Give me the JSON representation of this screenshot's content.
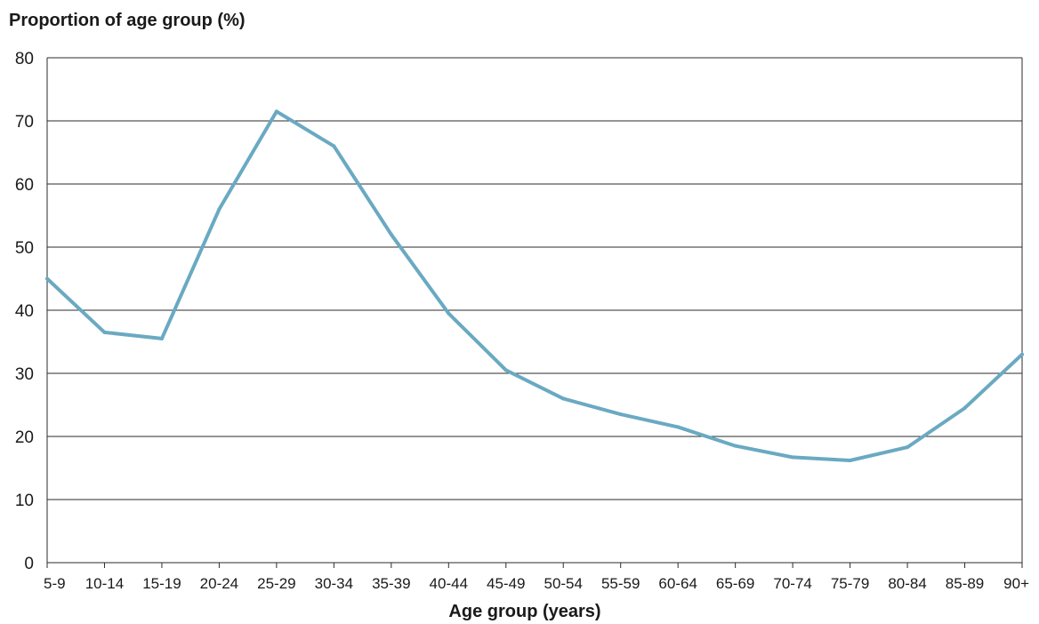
{
  "chart_data": {
    "type": "line",
    "ylabel": "Proportion of age group (%)",
    "xlabel": "Age group (years)",
    "categories": [
      "5-9",
      "10-14",
      "15-19",
      "20-24",
      "25-29",
      "30-34",
      "35-39",
      "40-44",
      "45-49",
      "50-54",
      "55-59",
      "60-64",
      "65-69",
      "70-74",
      "75-79",
      "80-84",
      "85-89",
      "90+"
    ],
    "yticks": [
      0,
      10,
      20,
      30,
      40,
      50,
      60,
      70,
      80
    ],
    "ylim": [
      0,
      80
    ],
    "grid": true,
    "series": [
      {
        "values": [
          45,
          36.5,
          35.5,
          56,
          71.5,
          66,
          52,
          39.5,
          30.5,
          26,
          23.5,
          21.5,
          18.5,
          16.7,
          16.2,
          18.3,
          24.5,
          33
        ],
        "color": "#6aa9c2"
      }
    ]
  }
}
